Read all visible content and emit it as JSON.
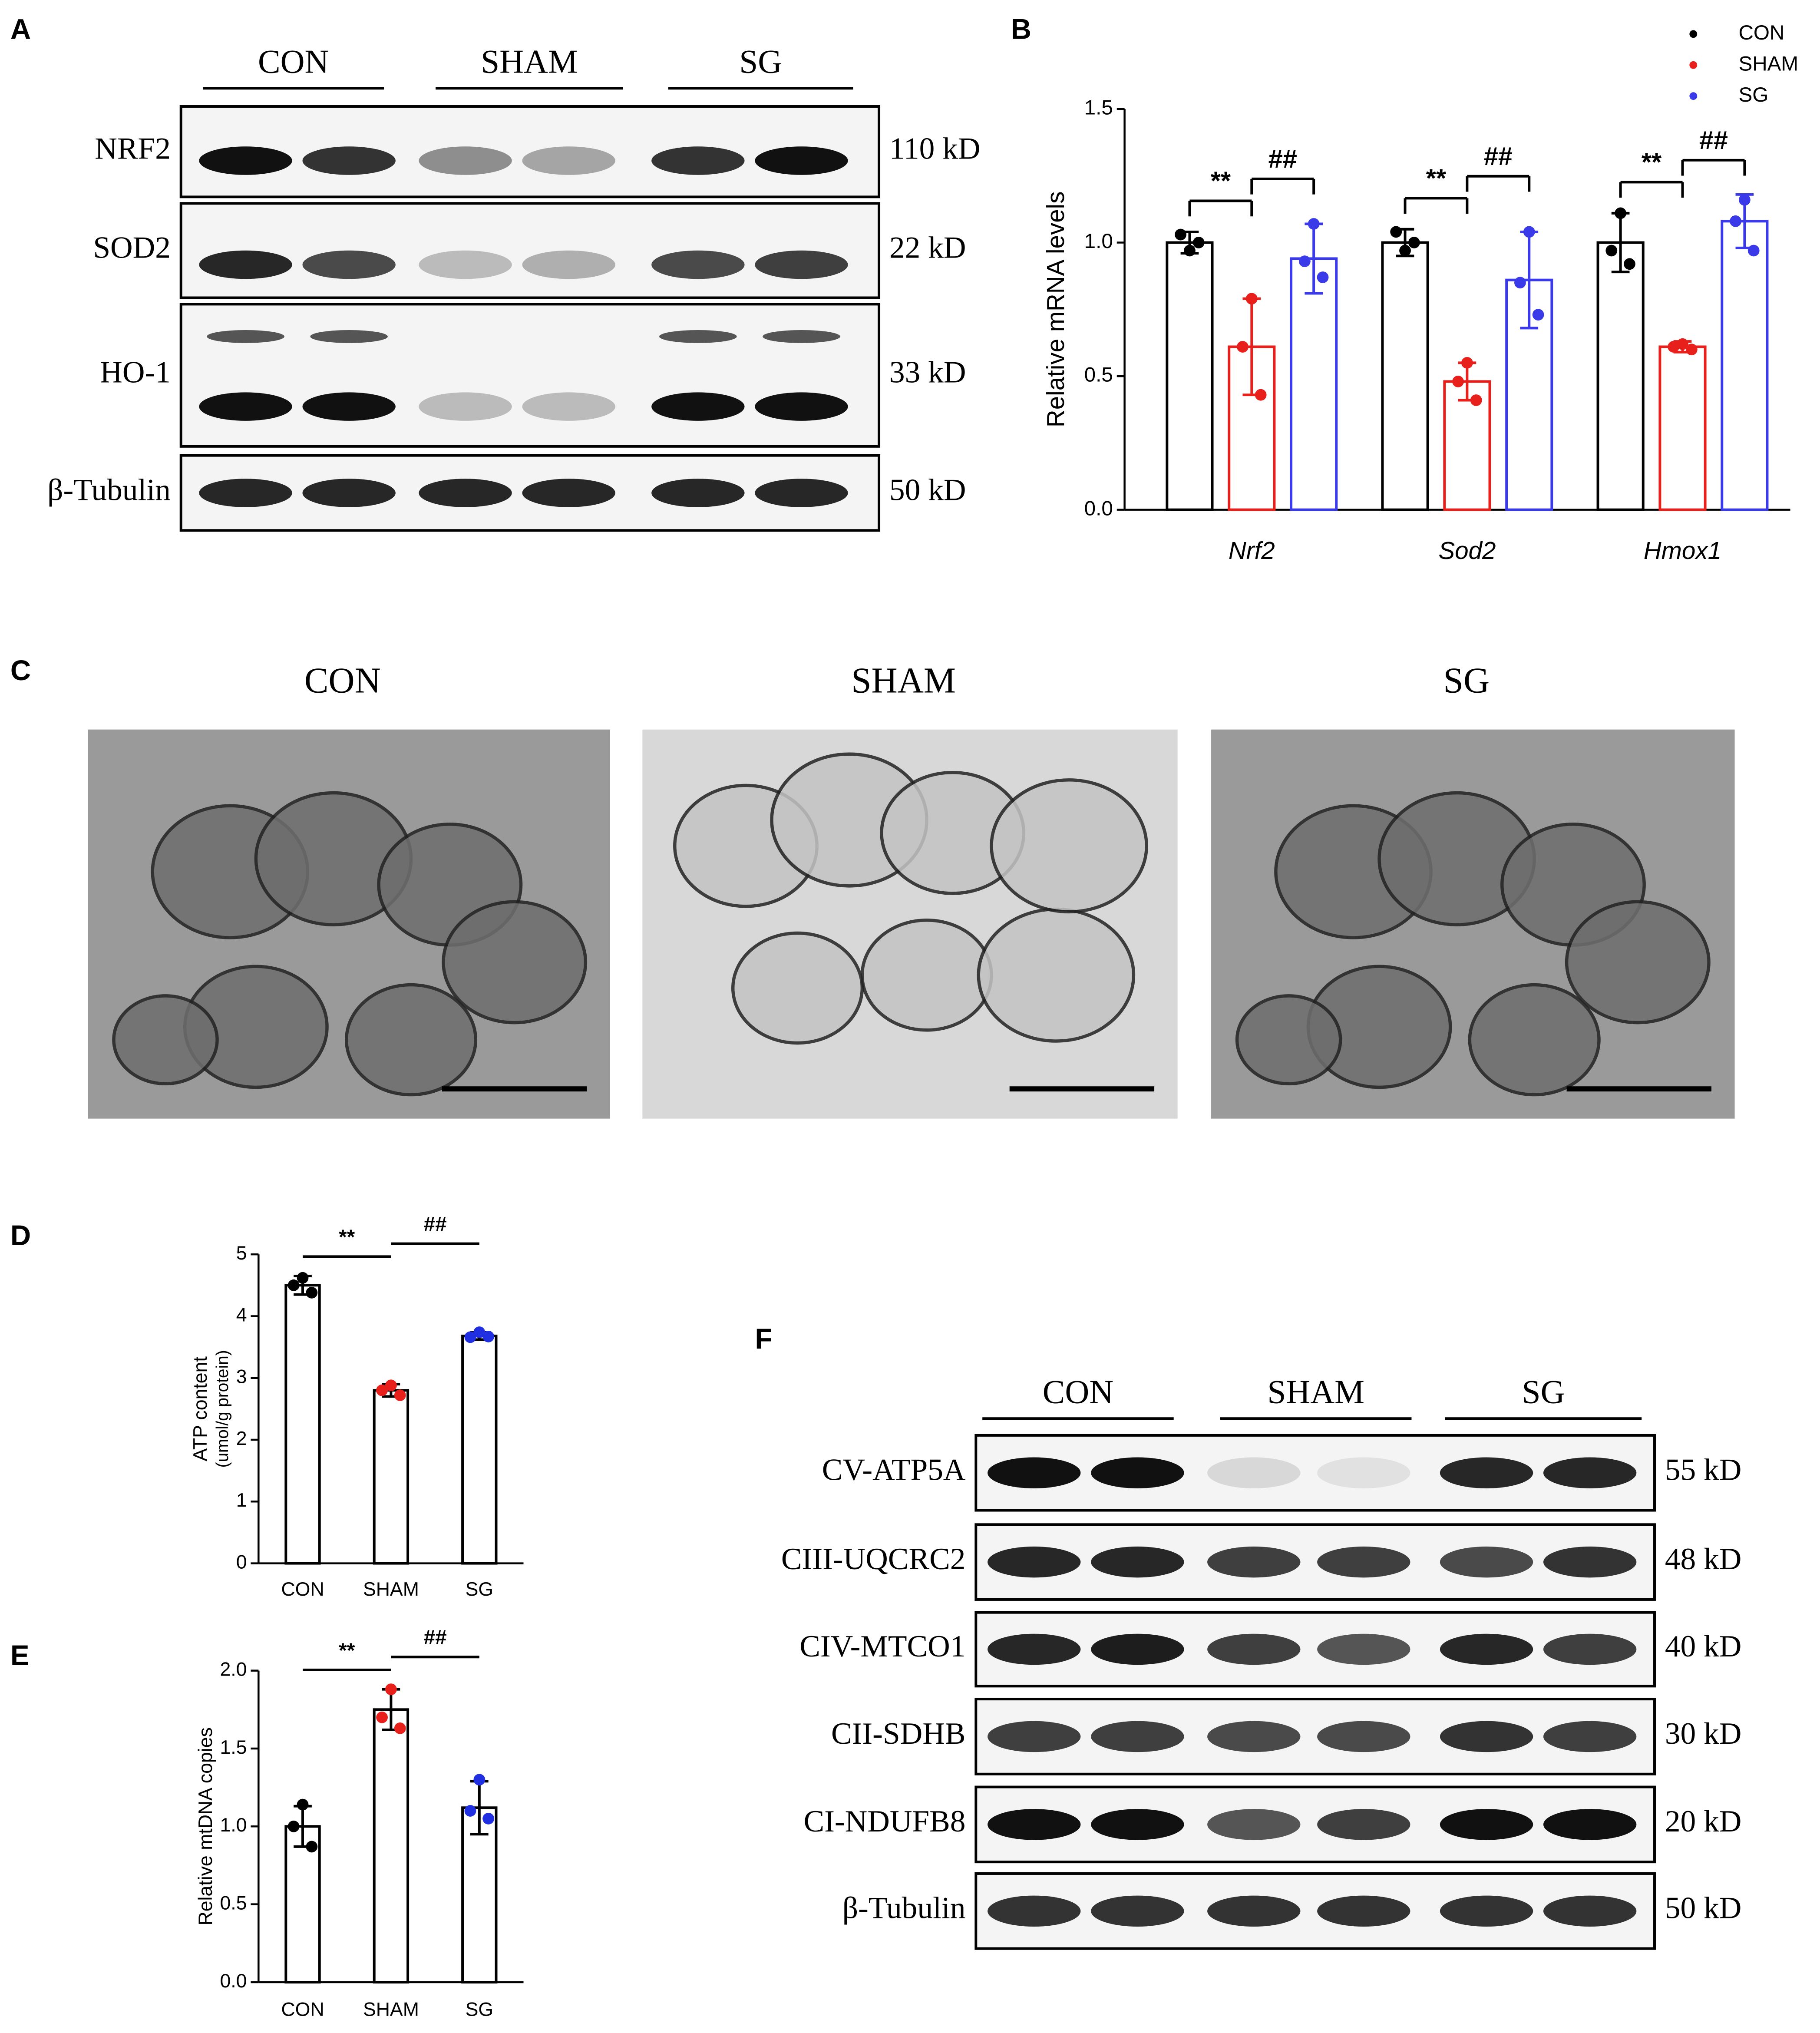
{
  "panels": {
    "a": "A",
    "b": "B",
    "c": "C",
    "d": "D",
    "e": "E",
    "f": "F"
  },
  "blot_a": {
    "groups": [
      "CON",
      "SHAM",
      "SG"
    ],
    "rows": [
      {
        "label": "NRF2",
        "size": "110 kD"
      },
      {
        "label": "SOD2",
        "size": "22 kD"
      },
      {
        "label": "HO-1",
        "size": "33 kD"
      },
      {
        "label": "β-Tubulin",
        "size": "50 kD"
      }
    ]
  },
  "em_c": {
    "titles": [
      "CON",
      "SHAM",
      "SG"
    ]
  },
  "blot_f": {
    "groups": [
      "CON",
      "SHAM",
      "SG"
    ],
    "rows": [
      {
        "label": "CV-ATP5A",
        "size": "55 kD"
      },
      {
        "label": "CIII-UQCRC2",
        "size": "48 kD"
      },
      {
        "label": "CIV-MTCO1",
        "size": "40 kD"
      },
      {
        "label": "CII-SDHB",
        "size": "30 kD"
      },
      {
        "label": "CI-NDUFB8",
        "size": "20 kD"
      },
      {
        "label": "β-Tubulin",
        "size": "50 kD"
      }
    ]
  },
  "chart_data": [
    {
      "type": "grouped_bar",
      "ylabel": "Relative mRNA levels",
      "categories": [
        "Nrf2",
        "Sod2",
        "Hmox1"
      ],
      "ylim": [
        0,
        1.5
      ],
      "yticks": [
        {
          "value": 0,
          "label": "0.0"
        },
        {
          "value": 0.5,
          "label": "0.5"
        },
        {
          "value": 1,
          "label": "1.0"
        },
        {
          "value": 1.5,
          "label": "1.5"
        }
      ],
      "legend": "top-right",
      "series": [
        {
          "name": "CON",
          "color": "#000000",
          "values": [
            1.0,
            1.0,
            1.0
          ],
          "errors": [
            0.04,
            0.05,
            0.11
          ],
          "points": [
            [
              0.97,
              1.03,
              1.0
            ],
            [
              0.97,
              1.04,
              1.0
            ],
            [
              1.11,
              0.97,
              0.92
            ]
          ]
        },
        {
          "name": "SHAM",
          "color": "#e8201c",
          "values": [
            0.61,
            0.48,
            0.61
          ],
          "errors": [
            0.18,
            0.07,
            0.02
          ],
          "points": [
            [
              0.79,
              0.61,
              0.43
            ],
            [
              0.55,
              0.48,
              0.41
            ],
            [
              0.62,
              0.61,
              0.6
            ]
          ]
        },
        {
          "name": "SG",
          "color": "#3a3ae8",
          "values": [
            0.94,
            0.86,
            1.08
          ],
          "errors": [
            0.13,
            0.18,
            0.1
          ],
          "points": [
            [
              1.07,
              0.93,
              0.87
            ],
            [
              1.04,
              0.85,
              0.73
            ],
            [
              1.16,
              1.08,
              0.97
            ]
          ]
        }
      ],
      "significance": [
        [
          "**",
          "##"
        ],
        [
          "**",
          "##"
        ],
        [
          "**",
          "##"
        ]
      ]
    },
    {
      "type": "bar",
      "ylabel": "ATP content",
      "ylabel_unit": "(umol/g protein)",
      "categories": [
        "CON",
        "SHAM",
        "SG"
      ],
      "values": [
        4.5,
        2.8,
        3.68
      ],
      "errors": [
        0.15,
        0.1,
        0.06
      ],
      "points": [
        [
          4.62,
          4.5,
          4.38
        ],
        [
          2.88,
          2.8,
          2.72
        ],
        [
          3.74,
          3.66,
          3.67
        ]
      ],
      "point_colors": [
        "#000000",
        "#e8201c",
        "#2030e0"
      ],
      "ylim": [
        0,
        5
      ],
      "yticks": [
        0,
        1,
        2,
        3,
        4,
        5
      ],
      "significance": [
        "**",
        "##"
      ]
    },
    {
      "type": "bar",
      "ylabel": "Relative mtDNA copies",
      "categories": [
        "CON",
        "SHAM",
        "SG"
      ],
      "values": [
        1.0,
        1.75,
        1.12
      ],
      "errors": [
        0.13,
        0.13,
        0.17
      ],
      "points": [
        [
          1.14,
          1.0,
          0.87
        ],
        [
          1.88,
          1.7,
          1.63
        ],
        [
          1.3,
          1.1,
          1.05
        ]
      ],
      "point_colors": [
        "#000000",
        "#e8201c",
        "#2030e0"
      ],
      "ylim": [
        0,
        2
      ],
      "yticks": [
        {
          "value": 0,
          "label": "0.0"
        },
        {
          "value": 0.5,
          "label": "0.5"
        },
        {
          "value": 1,
          "label": "1.0"
        },
        {
          "value": 1.5,
          "label": "1.5"
        },
        {
          "value": 2,
          "label": "2.0"
        }
      ],
      "significance": [
        "**",
        "##"
      ]
    }
  ]
}
